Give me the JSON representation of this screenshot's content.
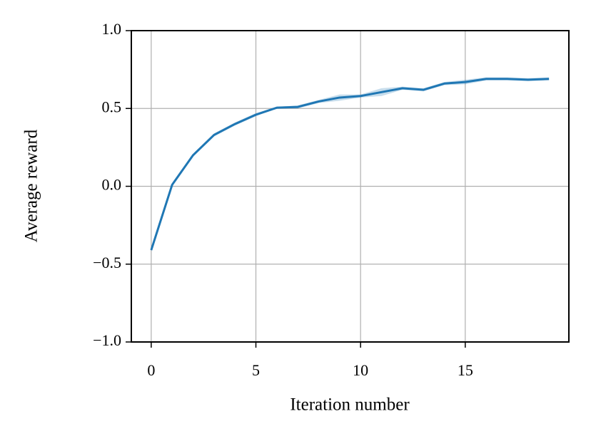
{
  "chart_data": {
    "type": "line",
    "xlabel": "Iteration number",
    "ylabel": "Average reward",
    "x": [
      0,
      1,
      2,
      3,
      4,
      5,
      6,
      7,
      8,
      9,
      10,
      11,
      12,
      13,
      14,
      15,
      16,
      17,
      18,
      19
    ],
    "series": [
      {
        "color": "#1f77b4",
        "values": [
          -0.41,
          0.01,
          0.2,
          0.33,
          0.4,
          0.46,
          0.505,
          0.51,
          0.545,
          0.57,
          0.58,
          0.605,
          0.63,
          0.62,
          0.66,
          0.67,
          0.69,
          0.69,
          0.685,
          0.69
        ],
        "band_lower": [
          -0.42,
          0.0,
          0.19,
          0.32,
          0.39,
          0.45,
          0.5,
          0.5,
          0.535,
          0.55,
          0.57,
          0.58,
          0.62,
          0.61,
          0.65,
          0.655,
          0.68,
          0.68,
          0.675,
          0.68
        ],
        "band_upper": [
          -0.4,
          0.02,
          0.21,
          0.34,
          0.41,
          0.47,
          0.51,
          0.52,
          0.555,
          0.59,
          0.59,
          0.63,
          0.64,
          0.63,
          0.67,
          0.685,
          0.7,
          0.7,
          0.695,
          0.7
        ],
        "band_color": "#1f77b4",
        "band_opacity": 0.25
      }
    ],
    "xlim": [
      -0.95,
      19.95
    ],
    "xticks": [
      0,
      5,
      10,
      15
    ],
    "ylim": [
      -1,
      1
    ],
    "yticks": [
      {
        "value": -1,
        "label": "−1.0"
      },
      {
        "value": -0.5,
        "label": "−0.5"
      },
      {
        "value": 0,
        "label": "0.0"
      },
      {
        "value": 0.5,
        "label": "0.5"
      },
      {
        "value": 1,
        "label": "1.0"
      }
    ],
    "grid": true
  }
}
